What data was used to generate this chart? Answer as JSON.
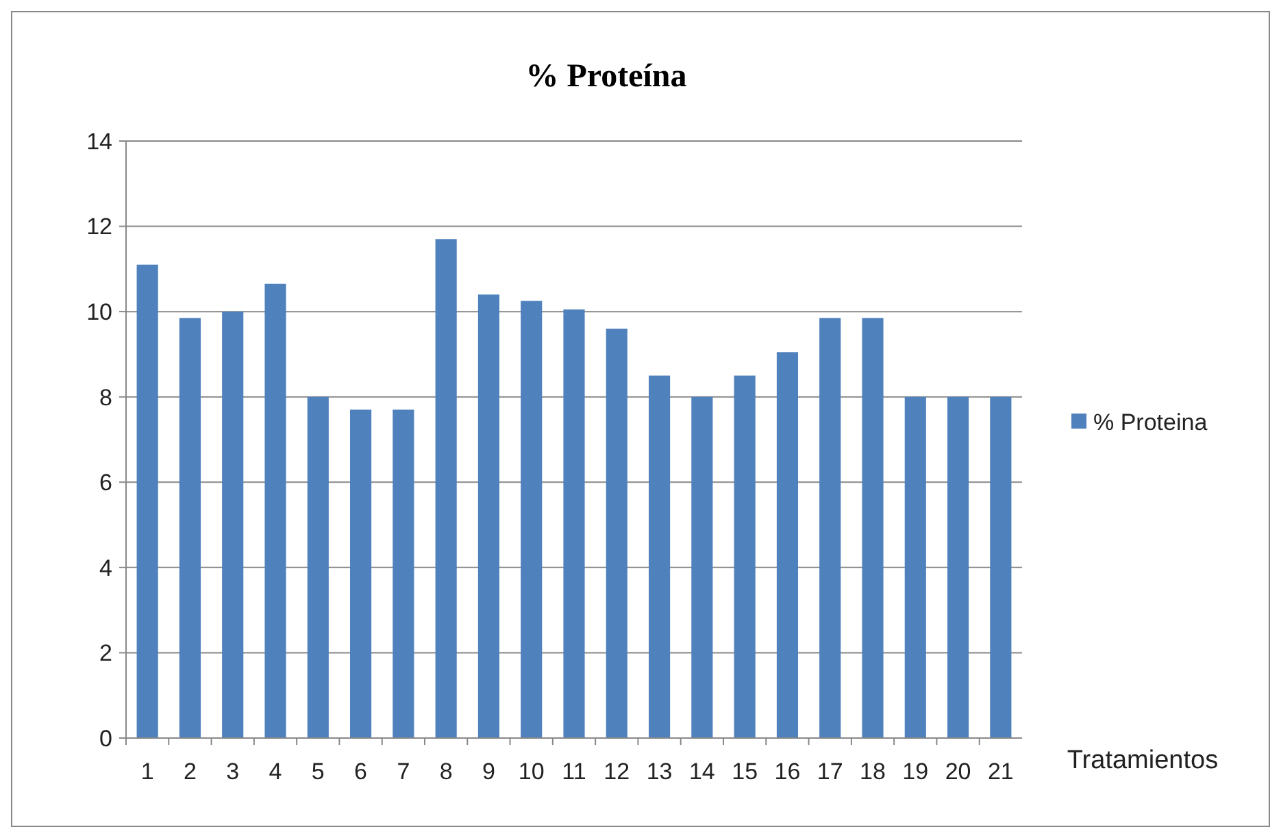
{
  "chart_data": {
    "type": "bar",
    "title": "% Proteína",
    "xlabel": "Tratamientos",
    "categories": [
      "1",
      "2",
      "3",
      "4",
      "5",
      "6",
      "7",
      "8",
      "9",
      "10",
      "11",
      "12",
      "13",
      "14",
      "15",
      "16",
      "17",
      "18",
      "19",
      "20",
      "21"
    ],
    "series": [
      {
        "name": "% Proteina",
        "color": "#4f81bd",
        "values": [
          11.1,
          9.85,
          10,
          10.65,
          8,
          7.7,
          7.7,
          11.7,
          10.4,
          10.25,
          10.05,
          9.6,
          8.5,
          8,
          8.5,
          9.05,
          9.85,
          9.85,
          8,
          8,
          8
        ]
      }
    ],
    "ylim": [
      0,
      14
    ],
    "yticks": [
      0,
      2,
      4,
      6,
      8,
      10,
      12,
      14
    ],
    "grid": "y",
    "legend": "right"
  }
}
